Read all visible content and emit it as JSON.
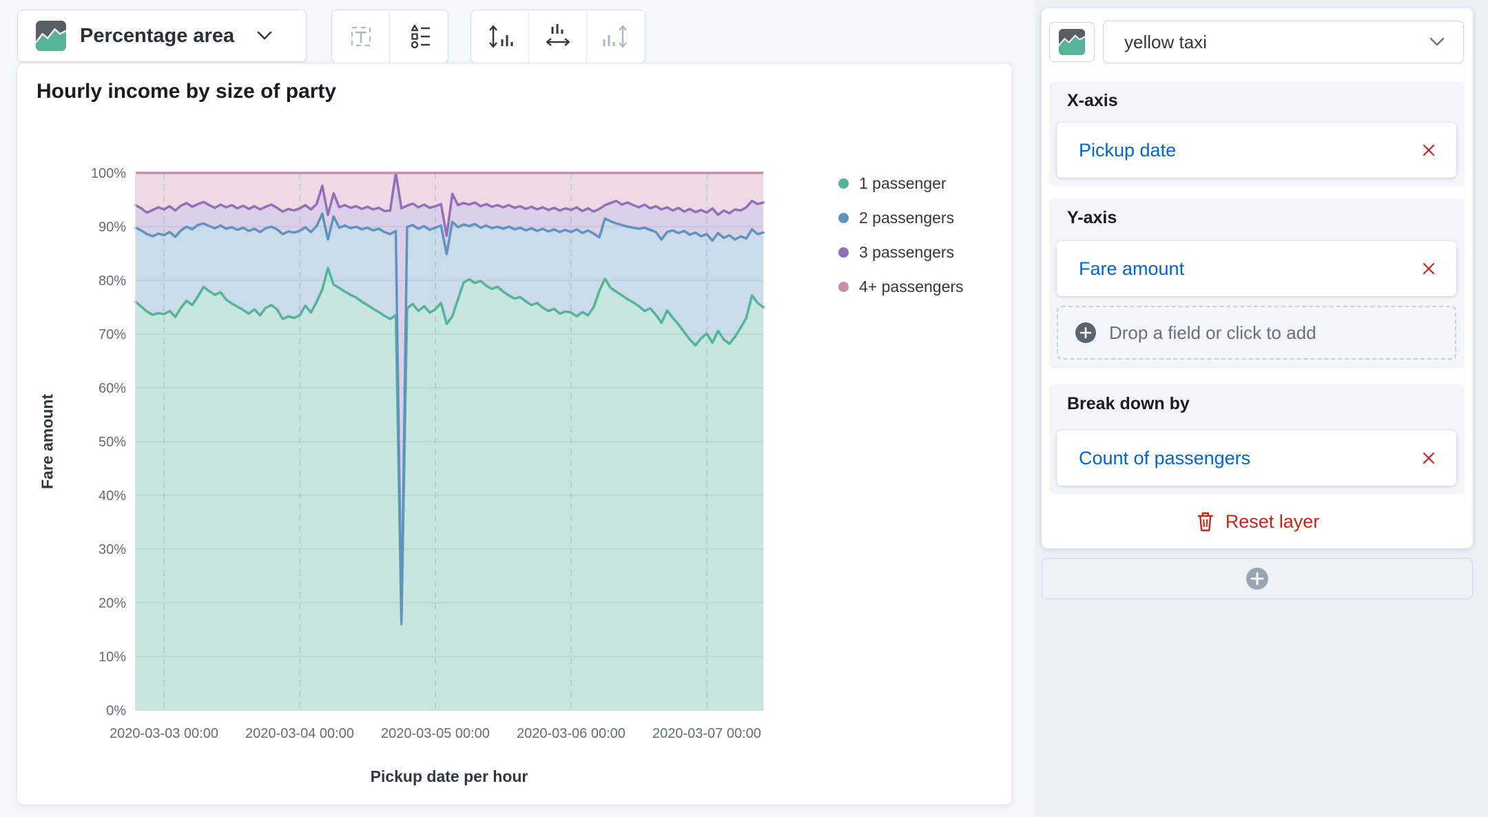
{
  "toolbar": {
    "chart_type_label": "Percentage area",
    "buttons": [
      {
        "icon": "text-annotation-icon",
        "disabled": true
      },
      {
        "icon": "legend-icon",
        "disabled": false
      },
      {
        "icon": "vertical-axis-icon",
        "disabled": false
      },
      {
        "icon": "horizontal-axis-icon",
        "disabled": false
      },
      {
        "icon": "right-axis-icon",
        "disabled": true
      }
    ]
  },
  "sidebar": {
    "dataset_value": "yellow taxi",
    "x_axis": {
      "label": "X-axis",
      "field": "Pickup date"
    },
    "y_axis": {
      "label": "Y-axis",
      "field": "Fare amount",
      "dropzone_text": "Drop a field or click to add"
    },
    "breakdown": {
      "label": "Break down by",
      "field": "Count of passengers"
    },
    "reset_label": "Reset layer"
  },
  "colors": {
    "link_blue": "#0064C9",
    "danger_red": "#BD271E",
    "section_bg": "#F2F5FA",
    "sidebar_bg": "#EBF0F7",
    "series": [
      "#54B399",
      "#6092C0",
      "#9170B8",
      "#CA8EAE"
    ]
  },
  "chart_data": {
    "type": "area",
    "mode": "percentage-stacked",
    "title": "Hourly income by size of party",
    "xlabel": "Pickup date per hour",
    "ylabel": "Fare amount",
    "x_start": "2020-03-02 19:00",
    "x_interval_hours": 1,
    "x_tick_indices": [
      5,
      29,
      53,
      77,
      101
    ],
    "x_tick_labels": [
      "2020-03-03 00:00",
      "2020-03-04 00:00",
      "2020-03-05 00:00",
      "2020-03-06 00:00",
      "2020-03-07 00:00"
    ],
    "y_tick_labels": [
      "0%",
      "10%",
      "20%",
      "30%",
      "40%",
      "50%",
      "60%",
      "70%",
      "80%",
      "90%",
      "100%"
    ],
    "ylim": [
      0,
      100
    ],
    "grid": true,
    "legend_position": "right",
    "values_note": "cumulative_top_pct = stacked upper boundary (%) per hour; 4+ passengers fills to 100%",
    "series": [
      {
        "name": "1 passenger",
        "color": "#54B399",
        "cumulative_top_pct": [
          76.0,
          75.1,
          74.2,
          73.6,
          73.9,
          73.7,
          74.3,
          73.2,
          74.9,
          76.2,
          75.4,
          77.0,
          78.8,
          78.0,
          77.3,
          77.8,
          76.4,
          75.7,
          75.1,
          74.5,
          73.8,
          74.6,
          73.5,
          74.9,
          75.4,
          74.6,
          72.8,
          73.3,
          73.0,
          73.5,
          75.3,
          74.0,
          76.0,
          78.3,
          82.3,
          79.2,
          78.6,
          77.9,
          77.3,
          76.8,
          76.0,
          75.4,
          74.7,
          74.1,
          73.4,
          72.8,
          73.5,
          16.0,
          74.8,
          75.6,
          74.3,
          75.2,
          74.0,
          74.6,
          75.8,
          71.9,
          73.3,
          76.5,
          79.6,
          80.2,
          79.5,
          79.9,
          79.0,
          78.4,
          78.8,
          77.9,
          77.2,
          76.6,
          76.9,
          76.1,
          75.4,
          75.8,
          74.9,
          74.3,
          74.7,
          73.8,
          74.2,
          74.0,
          73.3,
          74.1,
          73.5,
          75.0,
          78.0,
          80.3,
          78.6,
          77.9,
          77.2,
          76.5,
          75.9,
          75.2,
          74.3,
          74.8,
          73.6,
          72.1,
          74.4,
          73.0,
          71.8,
          70.4,
          69.0,
          67.9,
          69.2,
          70.1,
          68.4,
          70.6,
          69.0,
          68.2,
          69.5,
          71.2,
          73.0,
          77.2,
          75.8,
          75.0
        ]
      },
      {
        "name": "2 passengers",
        "color": "#6092C0",
        "cumulative_top_pct": [
          89.8,
          89.3,
          88.6,
          88.2,
          88.7,
          88.4,
          89.0,
          88.1,
          89.3,
          90.0,
          89.5,
          90.3,
          90.6,
          90.1,
          89.7,
          90.2,
          89.6,
          89.9,
          89.4,
          89.8,
          89.2,
          89.6,
          89.0,
          89.7,
          90.0,
          89.5,
          88.6,
          89.1,
          88.9,
          89.2,
          89.9,
          89.0,
          90.1,
          92.4,
          87.6,
          91.9,
          89.8,
          90.2,
          89.7,
          90.0,
          89.5,
          89.8,
          89.3,
          89.6,
          89.0,
          88.6,
          89.2,
          16.5,
          89.9,
          90.3,
          89.6,
          90.1,
          89.4,
          89.8,
          90.2,
          84.9,
          90.9,
          89.9,
          90.4,
          90.1,
          90.5,
          89.8,
          90.2,
          89.7,
          90.0,
          89.6,
          90.0,
          89.5,
          89.8,
          89.3,
          89.7,
          89.2,
          89.6,
          89.1,
          89.5,
          89.0,
          89.4,
          89.0,
          89.5,
          88.8,
          89.3,
          88.7,
          88.0,
          91.5,
          91.0,
          90.6,
          90.3,
          90.0,
          89.8,
          89.6,
          89.8,
          89.4,
          89.0,
          87.6,
          89.0,
          89.3,
          88.8,
          89.2,
          88.5,
          88.9,
          88.2,
          88.6,
          87.4,
          88.8,
          87.9,
          88.4,
          87.6,
          88.2,
          87.8,
          89.5,
          88.6,
          88.9
        ]
      },
      {
        "name": "3 passengers",
        "color": "#9170B8",
        "cumulative_top_pct": [
          94.0,
          93.4,
          92.6,
          93.1,
          93.6,
          93.2,
          93.8,
          93.0,
          93.9,
          94.4,
          93.7,
          94.2,
          94.6,
          94.0,
          93.5,
          94.1,
          93.6,
          94.0,
          93.4,
          93.9,
          93.3,
          93.8,
          93.2,
          93.7,
          94.1,
          93.5,
          92.8,
          93.3,
          93.0,
          93.4,
          94.0,
          93.2,
          94.2,
          97.6,
          92.2,
          96.2,
          93.6,
          94.0,
          93.5,
          93.8,
          93.3,
          93.7,
          93.2,
          93.5,
          92.9,
          93.0,
          100.0,
          93.4,
          93.9,
          94.3,
          93.6,
          94.1,
          93.5,
          93.8,
          94.2,
          88.3,
          96.1,
          94.0,
          94.4,
          94.1,
          94.5,
          93.8,
          94.2,
          93.7,
          94.0,
          93.6,
          94.0,
          93.5,
          93.8,
          93.3,
          93.7,
          93.2,
          93.6,
          93.1,
          93.5,
          93.0,
          93.4,
          93.1,
          93.6,
          92.9,
          93.4,
          92.8,
          93.3,
          94.0,
          94.4,
          94.8,
          94.1,
          94.5,
          94.0,
          93.6,
          94.1,
          93.4,
          93.8,
          93.2,
          93.6,
          93.0,
          93.5,
          92.8,
          93.3,
          92.7,
          93.1,
          92.6,
          93.4,
          92.2,
          93.0,
          92.5,
          93.2,
          93.0,
          93.6,
          94.8,
          94.2,
          94.5
        ]
      },
      {
        "name": "4+ passengers",
        "color": "#CA8EAE",
        "cumulative_top_pct": null
      }
    ]
  }
}
